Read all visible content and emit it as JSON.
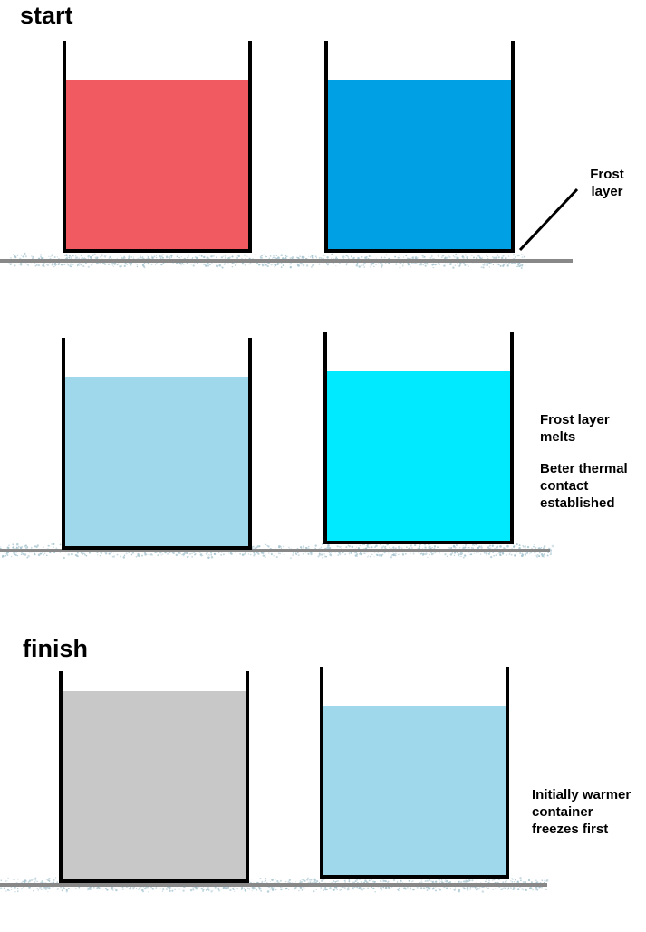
{
  "stages": [
    {
      "title": "start",
      "containers": [
        {
          "liquid_color": "#f05a60"
        },
        {
          "liquid_color": "#00a0e4"
        }
      ],
      "annotation": {
        "lines": [
          "Frost",
          "layer"
        ]
      }
    },
    {
      "title": "",
      "containers": [
        {
          "liquid_color": "#9fd8ea"
        },
        {
          "liquid_color": "#00eaff"
        }
      ],
      "annotation": {
        "lines": [
          "Frost layer",
          "melts",
          "",
          "Beter thermal",
          "contact",
          "established"
        ]
      }
    },
    {
      "title": "finish",
      "containers": [
        {
          "liquid_color": "#c8c8c8"
        },
        {
          "liquid_color": "#9fd8ea"
        }
      ],
      "annotation": {
        "lines": [
          "Initially warmer",
          "container",
          "freezes first"
        ]
      }
    }
  ],
  "colors": {
    "container_wall": "#000000",
    "surface": "#888888",
    "frost": "#a9c6d1"
  }
}
